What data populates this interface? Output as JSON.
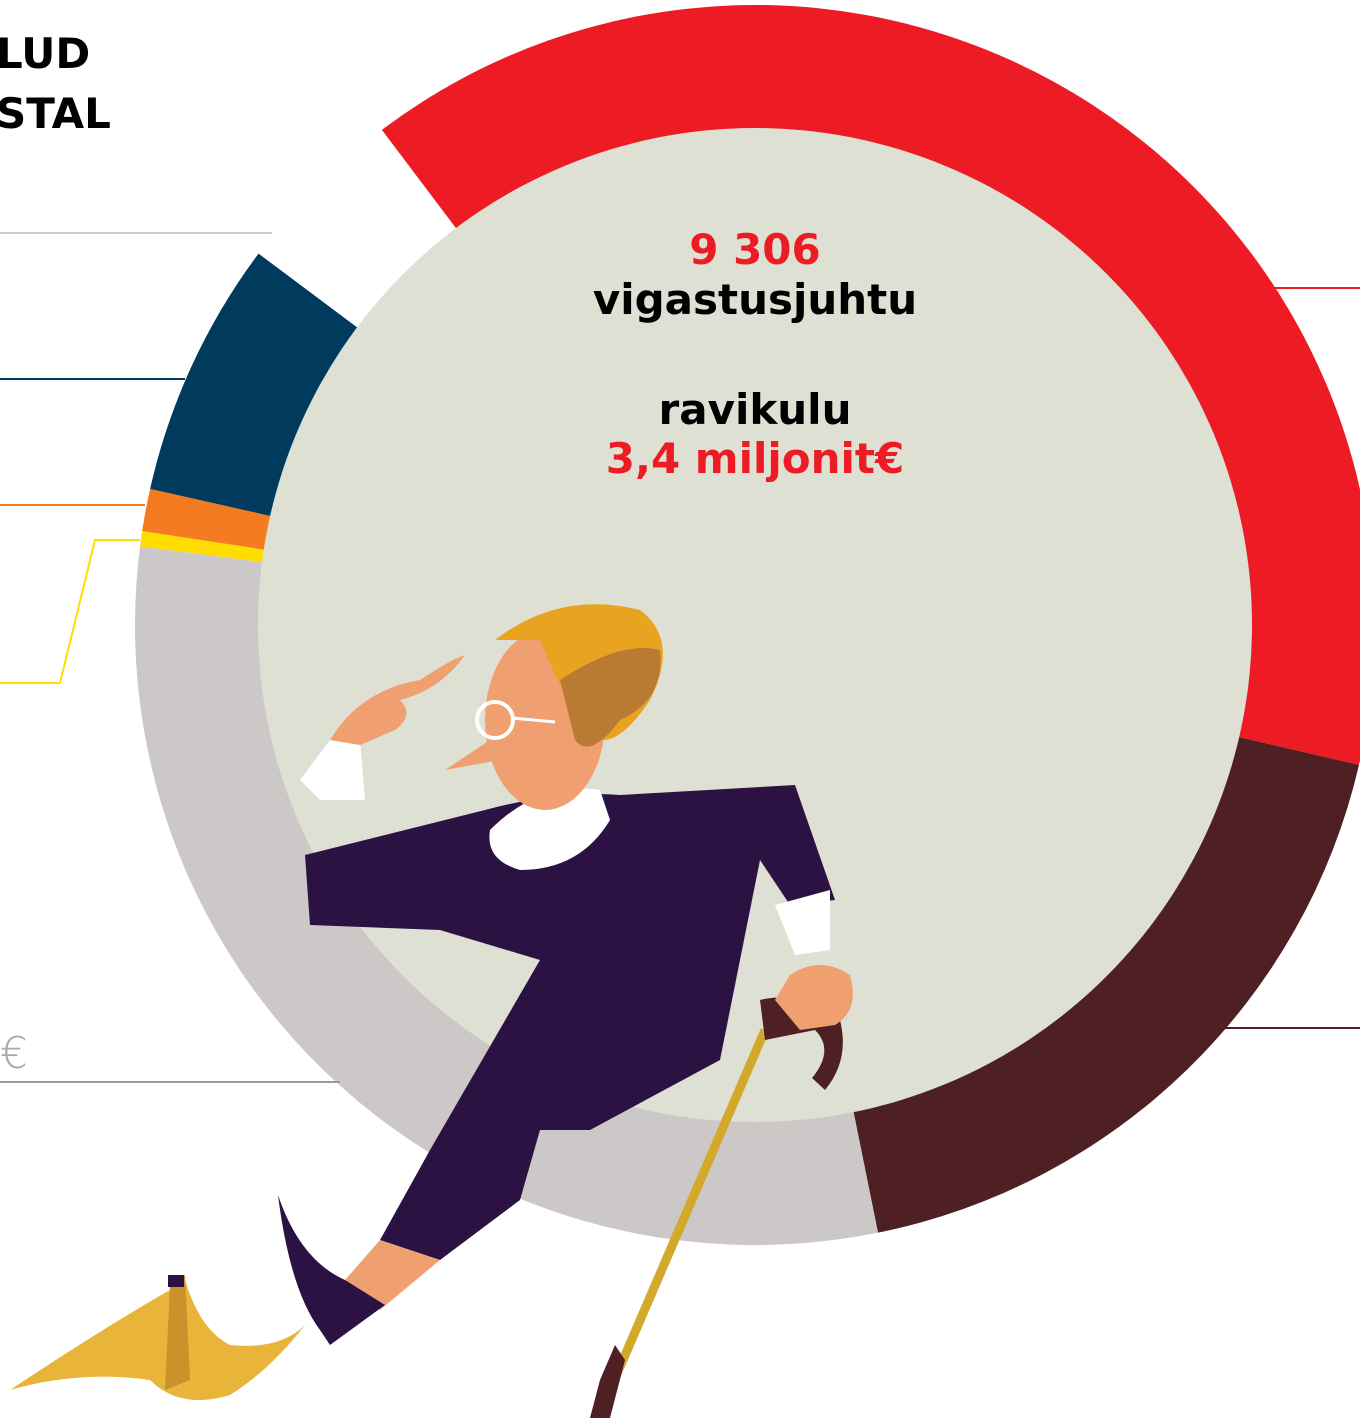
{
  "chart_data": {
    "type": "pie",
    "title_lines": [
      "LUD",
      "STAL"
    ],
    "annotations": [
      "9 306",
      "vigastusjuhtu",
      "ravikulu",
      "3,4 miljonit€"
    ],
    "side_label": "€",
    "values": [
      38.9,
      18.2,
      30.2,
      0.4,
      1.1,
      6.7
    ],
    "colors": [
      "#ed1c24",
      "#4f2023",
      "#cdc8c8",
      "#ffdd00",
      "#f47b20",
      "#003a5d"
    ]
  }
}
